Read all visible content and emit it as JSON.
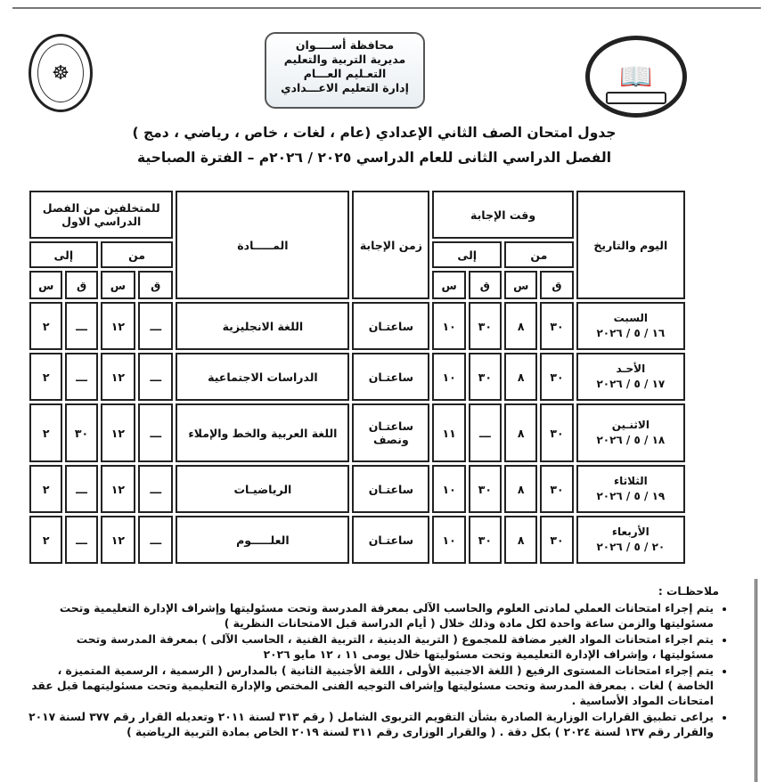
{
  "header": {
    "lines": [
      "محافظة أســــوان",
      "مديرية التربية والتعليم",
      "التعـليم العـــام",
      "إدارة التعليم الاعـــدادي"
    ]
  },
  "title": {
    "line1": "جدول امتحان الصف الثاني الإعدادي (عام ، لغات ، خاص ، رياضي ، دمج )",
    "line2": "الفصل الدراسي الثانى للعام الدراسي ٢٠٢٥ / ٢٠٢٦م – الفترة الصباحية"
  },
  "table": {
    "headers": {
      "day_date": "اليوم والتاريخ",
      "answer_time": "وقت الإجابة",
      "duration": "زمن الإجابة",
      "subject": "المـــــادة",
      "late": "للمتخلفين من الفصل الدراسي الاول",
      "from": "من",
      "to": "إلى",
      "minute": "ق",
      "hour": "س"
    },
    "rows": [
      {
        "day": "السبت",
        "date": "١٦ / ٥ / ٢٠٢٦",
        "from_q": "٣٠",
        "from_s": "٨",
        "to_q": "٣٠",
        "to_s": "١٠",
        "duration": "ساعتـان",
        "subject": "اللغة الانجليزية",
        "late_from_q": "ـــ",
        "late_from_s": "١٢",
        "late_to_q": "ـــ",
        "late_to_s": "٢"
      },
      {
        "day": "الأحـد",
        "date": "١٧ / ٥ / ٢٠٢٦",
        "from_q": "٣٠",
        "from_s": "٨",
        "to_q": "٣٠",
        "to_s": "١٠",
        "duration": "ساعتـان",
        "subject": "الدراسات الاجتماعية",
        "late_from_q": "ـــ",
        "late_from_s": "١٢",
        "late_to_q": "ـــ",
        "late_to_s": "٢"
      },
      {
        "day": "الاثنـين",
        "date": "١٨ / ٥ / ٢٠٢٦",
        "from_q": "٣٠",
        "from_s": "٨",
        "to_q": "ـــ",
        "to_s": "١١",
        "duration": "ساعتـان ونصف",
        "subject": "اللغة العربية والخط والإملاء",
        "late_from_q": "ـــ",
        "late_from_s": "١٢",
        "late_to_q": "٣٠",
        "late_to_s": "٢"
      },
      {
        "day": "الثلاثاء",
        "date": "١٩ / ٥ / ٢٠٢٦",
        "from_q": "٣٠",
        "from_s": "٨",
        "to_q": "٣٠",
        "to_s": "١٠",
        "duration": "ساعتـان",
        "subject": "الرياضيـات",
        "late_from_q": "ـــ",
        "late_from_s": "١٢",
        "late_to_q": "ـــ",
        "late_to_s": "٢"
      },
      {
        "day": "الأربعاء",
        "date": "٢٠ / ٥ / ٢٠٢٦",
        "from_q": "٣٠",
        "from_s": "٨",
        "to_q": "٣٠",
        "to_s": "١٠",
        "duration": "ساعتـان",
        "subject": "العلـــــوم",
        "late_from_q": "ـــ",
        "late_from_s": "١٢",
        "late_to_q": "ـــ",
        "late_to_s": "٢"
      }
    ]
  },
  "notes": {
    "title": "ملاحظـات :",
    "items": [
      "يتم إجراء امتحانات العملي لمادتى العلوم والحاسب الآلى بمعرفة المدرسة وتحت مسئوليتها وإشراف الإدارة التعليمية وتحت مسئوليتها والزمن ساعة واحدة لكل مادة وذلك خلال ( أيام الدراسة قبل الامتحانات النظرية )",
      "يتم اجراء امتحانات المواد الغير مضافة للمجموع ( التربية الدينية ، التربية الفنية ، الحاسب الآلى ) بمعرفة المدرسة وتحت مسئوليتها ، وإشراف الإدارة التعليمية وتحت مسئوليتها خلال يومى ١١ ، ١٢ مايو ٢٠٢٦",
      "يتم إجراء امتحانات المستوى الرفيع ( اللغة الاجنبية الأولى ، اللغة الأجنبية الثانية ) بالمدارس ( الرسمية ، الرسمية المتميزة ، الخاصة ) لغات . بمعرفة المدرسة وتحت مسئوليتها وإشراف التوجيه الفنى المختص والإدارة التعليمية وتحت مسئوليتهما قبل عقد امتحانات المواد الأساسية .",
      "يراعى تطبيق القرارات الوزارية الصادرة بشأن التقويم التربوى الشامل ( رقم ٣١٣ لسنة ٢٠١١ وتعديله القرار رقم ٣٧٧ لسنة ٢٠١٧ والقرار رقم ١٣٧ لسنة ٢٠٢٤ ) بكل دقة . ( والقرار الوزارى رقم ٣١١ لسنة ٢٠١٩ الخاص بمادة التربية الرياضية )"
    ]
  }
}
